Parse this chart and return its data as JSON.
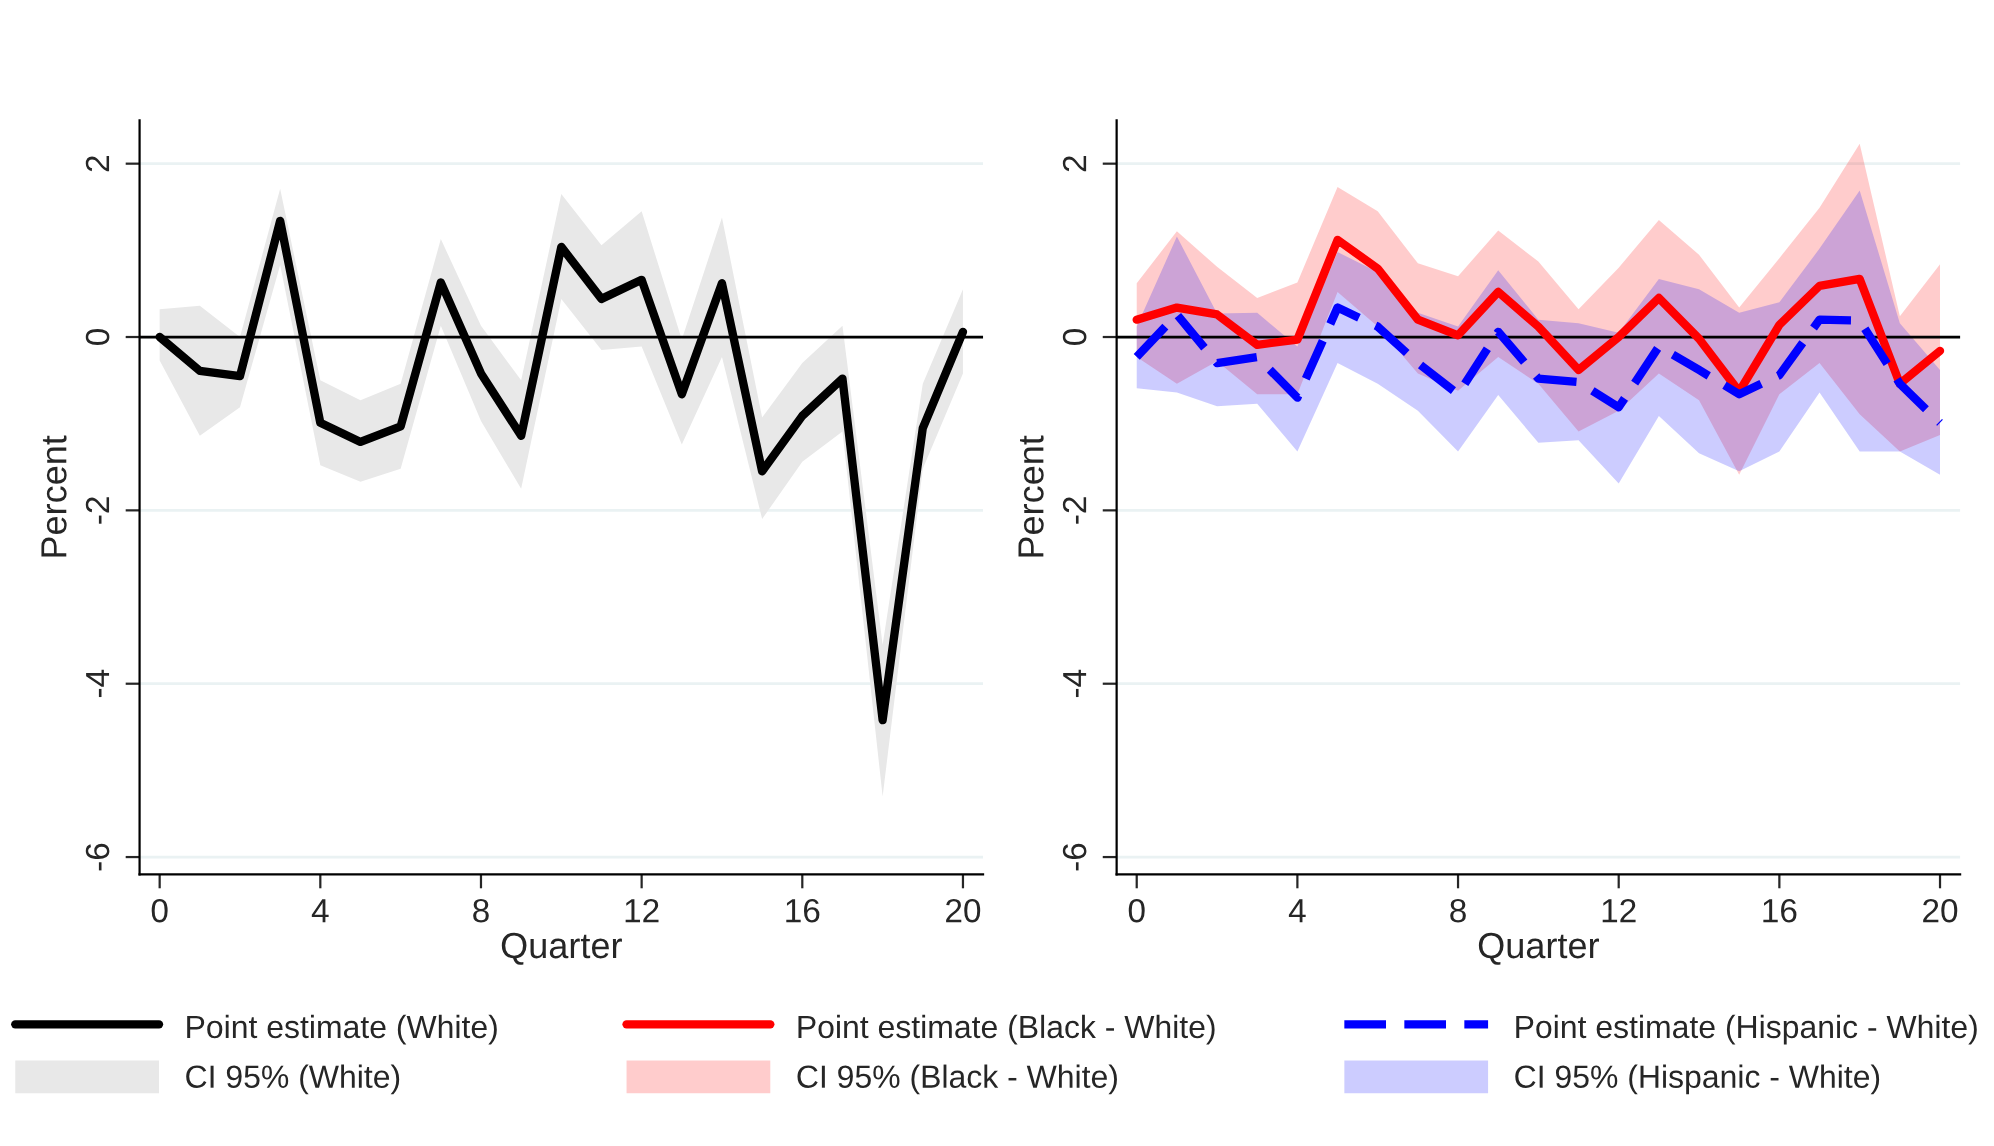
{
  "chart_data": [
    {
      "type": "line",
      "xlabel": "Quarter",
      "ylabel": "Percent",
      "x": [
        0,
        1,
        2,
        3,
        4,
        5,
        6,
        7,
        8,
        9,
        10,
        11,
        12,
        13,
        14,
        15,
        16,
        17,
        18,
        19,
        20
      ],
      "xlim": [
        -0.5,
        20.5
      ],
      "xticks": [
        0,
        4,
        8,
        12,
        16,
        20
      ],
      "ylim": [
        -6.2,
        2.5
      ],
      "yticks": [
        -6,
        -4,
        -2,
        0,
        2
      ],
      "grid": "y",
      "legend": "bottom",
      "ref_lines": [
        {
          "axis": "y",
          "value": 0,
          "color": "#000000"
        }
      ],
      "annotations": [
        "CI 95% (White)"
      ],
      "series": [
        {
          "name": "Point estimate (White)",
          "color": "#000000",
          "line_style": "solid",
          "values": [
            0,
            -0.39,
            -0.45,
            1.34,
            -0.99,
            -1.21,
            -1.03,
            0.63,
            -0.42,
            -1.14,
            1.04,
            0.44,
            0.66,
            -0.66,
            0.62,
            -1.55,
            -0.91,
            -0.48,
            -4.42,
            -1.05,
            0.06
          ],
          "lower": [
            -0.27,
            -1.14,
            -0.81,
            0.83,
            -1.48,
            -1.67,
            -1.52,
            0.13,
            -0.97,
            -1.75,
            0.44,
            -0.15,
            -0.11,
            -1.24,
            -0.23,
            -2.1,
            -1.44,
            -1.09,
            -5.3,
            -1.52,
            -0.42
          ],
          "upper": [
            0.32,
            0.36,
            0,
            1.71,
            -0.5,
            -0.73,
            -0.54,
            1.13,
            0.13,
            -0.5,
            1.65,
            1.06,
            1.45,
            -0.03,
            1.38,
            -0.93,
            -0.3,
            0.13,
            -3.55,
            -0.54,
            0.55
          ]
        }
      ]
    },
    {
      "type": "line",
      "xlabel": "Quarter",
      "ylabel": "Percent",
      "x": [
        0,
        1,
        2,
        3,
        4,
        5,
        6,
        7,
        8,
        9,
        10,
        11,
        12,
        13,
        14,
        15,
        16,
        17,
        18,
        19,
        20
      ],
      "xlim": [
        -0.5,
        20.5
      ],
      "xticks": [
        0,
        4,
        8,
        12,
        16,
        20
      ],
      "ylim": [
        -6.2,
        2.5
      ],
      "yticks": [
        -6,
        -4,
        -2,
        0,
        2
      ],
      "grid": "y",
      "legend": "bottom",
      "ref_lines": [
        {
          "axis": "y",
          "value": 0,
          "color": "#000000"
        }
      ],
      "annotations": [
        "CI 95% (Black - White)",
        "CI 95% (Hispanic - White)"
      ],
      "series": [
        {
          "name": "Point estimate (Black - White)",
          "color": "#ff0000",
          "line_style": "solid",
          "values": [
            0.2,
            0.34,
            0.26,
            -0.09,
            -0.03,
            1.12,
            0.79,
            0.2,
            0.02,
            0.52,
            0.12,
            -0.38,
            0,
            0.45,
            -0.02,
            -0.63,
            0.14,
            0.59,
            0.67,
            -0.54,
            -0.16
          ],
          "lower": [
            -0.23,
            -0.54,
            -0.28,
            -0.66,
            -0.66,
            0.52,
            0.12,
            -0.42,
            -0.62,
            -0.23,
            -0.54,
            -1.09,
            -0.85,
            -0.42,
            -0.73,
            -1.59,
            -0.66,
            -0.3,
            -0.89,
            -1.32,
            -1.13
          ],
          "upper": [
            0.62,
            1.22,
            0.81,
            0.45,
            0.63,
            1.73,
            1.45,
            0.85,
            0.7,
            1.23,
            0.87,
            0.32,
            0.8,
            1.35,
            0.95,
            0.34,
            0.91,
            1.49,
            2.23,
            0.24,
            0.84
          ]
        },
        {
          "name": "Point estimate (Hispanic - White)",
          "color": "#0000ff",
          "line_style": "dashed",
          "values": [
            -0.23,
            0.26,
            -0.3,
            -0.23,
            -0.7,
            0.34,
            0.12,
            -0.3,
            -0.66,
            0.06,
            -0.48,
            -0.52,
            -0.81,
            -0.11,
            -0.38,
            -0.66,
            -0.44,
            0.2,
            0.19,
            -0.54,
            -0.99
          ],
          "lower": [
            -0.59,
            -0.64,
            -0.8,
            -0.77,
            -1.32,
            -0.3,
            -0.54,
            -0.85,
            -1.32,
            -0.67,
            -1.22,
            -1.19,
            -1.69,
            -0.91,
            -1.34,
            -1.55,
            -1.32,
            -0.64,
            -1.32,
            -1.32,
            -1.59
          ],
          "upper": [
            0.12,
            1.16,
            0.27,
            0.28,
            -0.11,
            0.98,
            0.75,
            0.28,
            0.12,
            0.77,
            0.2,
            0.16,
            0.05,
            0.67,
            0.55,
            0.28,
            0.4,
            1.02,
            1.69,
            0.16,
            -0.38
          ]
        }
      ]
    }
  ]
}
